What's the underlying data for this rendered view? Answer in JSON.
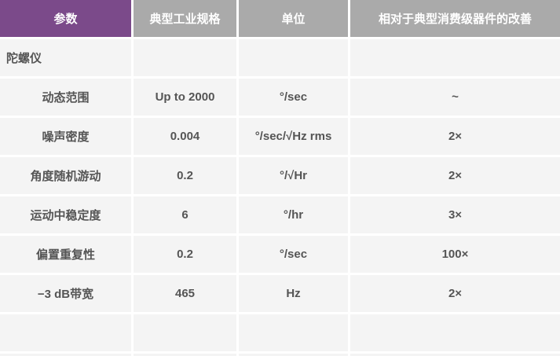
{
  "header": [
    "参数",
    "典型工业规格",
    "单位",
    "相对于典型消费级器件的改善"
  ],
  "section_label": "陀螺仪",
  "rows": [
    {
      "param": "动态范围",
      "spec": "Up to 2000",
      "unit": "°/sec",
      "improvement": "~"
    },
    {
      "param": "噪声密度",
      "spec": "0.004",
      "unit": "°/sec/√Hz rms",
      "improvement": "2×"
    },
    {
      "param": "角度随机游动",
      "spec": "0.2",
      "unit": "°/√Hr",
      "improvement": "2×"
    },
    {
      "param": "运动中稳定度",
      "spec": "6",
      "unit": "°/hr",
      "improvement": "3×"
    },
    {
      "param": "偏置重复性",
      "spec": "0.2",
      "unit": "°/sec",
      "improvement": "100×"
    },
    {
      "param": "−3 dB带宽",
      "spec": "465",
      "unit": "Hz",
      "improvement": "2×"
    }
  ],
  "colors": {
    "header_first": "#7b4a8a",
    "header": "#aaaaaa",
    "cell": "#f4f4f4",
    "text": "#555555"
  }
}
